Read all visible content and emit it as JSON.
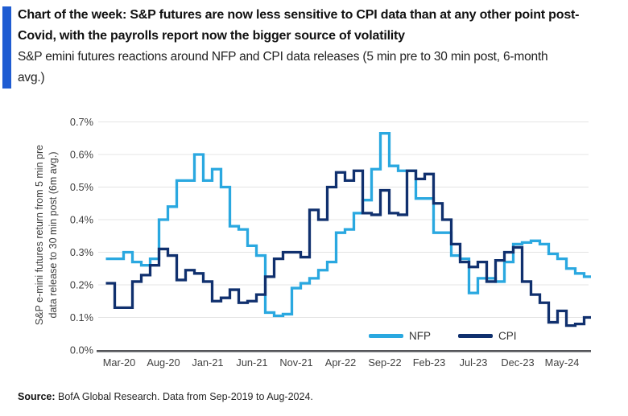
{
  "header": {
    "accent_color": "#1f5cd2",
    "title_line1": "Chart of the week: S&P futures are now less sensitive to CPI data than at any other point post-",
    "title_line2": "Covid, with the payrolls report now the bigger source of volatility",
    "subtitle_line1": "S&P emini futures reactions around NFP and CPI data releases (5 min pre to 30 min post, 6-month",
    "subtitle_line2": "avg.)"
  },
  "source": {
    "label": "Source:",
    "text": " BofA Global Research. Data from Sep-2019 to Aug-2024."
  },
  "chart_data": {
    "type": "line",
    "step": true,
    "title": "",
    "ylabel_line1": "S&P e-mini futures return from 5 min pre",
    "ylabel_line2": "data release to 30 min post (6m avg.)",
    "y_ticks": [
      "0.0%",
      "0.1%",
      "0.2%",
      "0.3%",
      "0.4%",
      "0.5%",
      "0.6%",
      "0.7%"
    ],
    "ylim": [
      0.0,
      0.7
    ],
    "grid": "horizontal",
    "legend_position": "inside-bottom-center",
    "x_frequency": "monthly",
    "x_range": [
      "Feb-20",
      "Aug-24"
    ],
    "x_tick_labels": [
      "Mar-20",
      "Aug-20",
      "Jan-21",
      "Jun-21",
      "Nov-21",
      "Apr-22",
      "Sep-22",
      "Feb-23",
      "Jul-23",
      "Dec-23",
      "May-24"
    ],
    "x_tick_start_index": 1,
    "x_tick_step": 5,
    "axis_color": "#55565a",
    "gridline_color": "#e4e4e4",
    "tick_label_color": "#3f3f3f",
    "series": [
      {
        "name": "NFP",
        "color": "#2aa8e0",
        "values": [
          0.28,
          0.28,
          0.3,
          0.27,
          0.26,
          0.28,
          0.4,
          0.44,
          0.52,
          0.52,
          0.6,
          0.52,
          0.555,
          0.5,
          0.38,
          0.37,
          0.32,
          0.29,
          0.115,
          0.105,
          0.11,
          0.19,
          0.205,
          0.22,
          0.245,
          0.27,
          0.36,
          0.37,
          0.42,
          0.46,
          0.555,
          0.665,
          0.565,
          0.55,
          0.55,
          0.465,
          0.465,
          0.36,
          0.36,
          0.29,
          0.28,
          0.175,
          0.22,
          0.22,
          0.21,
          0.27,
          0.325,
          0.33,
          0.335,
          0.325,
          0.295,
          0.28,
          0.25,
          0.235,
          0.225
        ]
      },
      {
        "name": "CPI",
        "color": "#10306e",
        "values": [
          0.205,
          0.13,
          0.13,
          0.21,
          0.23,
          0.26,
          0.31,
          0.29,
          0.215,
          0.245,
          0.235,
          0.21,
          0.15,
          0.16,
          0.185,
          0.145,
          0.15,
          0.17,
          0.225,
          0.28,
          0.3,
          0.3,
          0.285,
          0.43,
          0.4,
          0.5,
          0.545,
          0.52,
          0.55,
          0.42,
          0.415,
          0.49,
          0.42,
          0.415,
          0.55,
          0.525,
          0.54,
          0.45,
          0.4,
          0.325,
          0.27,
          0.255,
          0.27,
          0.21,
          0.275,
          0.3,
          0.315,
          0.21,
          0.17,
          0.145,
          0.085,
          0.12,
          0.075,
          0.08,
          0.1
        ]
      }
    ]
  }
}
